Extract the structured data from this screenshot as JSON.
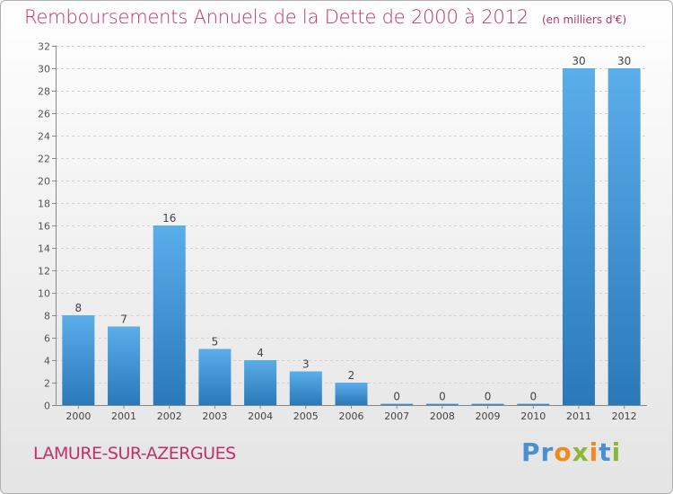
{
  "title": "Remboursements Annuels de la Dette de 2000 à 2012",
  "subtitle": "(en milliers d'€)",
  "footer": {
    "town": "LAMURE-SUR-AZERGUES",
    "logo_text": "Proxiti"
  },
  "colors": {
    "title": "#c2306a",
    "bar_light": "#5aaeea",
    "bar_dark": "#2a78b8"
  },
  "chart_data": {
    "type": "bar",
    "title": "Remboursements Annuels de la Dette de 2000 à 2012",
    "subtitle": "(en milliers d'€)",
    "categories": [
      "2000",
      "2001",
      "2002",
      "2003",
      "2004",
      "2005",
      "2006",
      "2007",
      "2008",
      "2009",
      "2010",
      "2011",
      "2012"
    ],
    "values": [
      8,
      7,
      16,
      5,
      4,
      3,
      2,
      0,
      0,
      0,
      0,
      30,
      30
    ],
    "xlabel": "",
    "ylabel": "",
    "ylim": [
      0,
      32
    ],
    "yticks": [
      0,
      2,
      4,
      6,
      8,
      10,
      12,
      14,
      16,
      18,
      20,
      22,
      24,
      26,
      28,
      30,
      32
    ],
    "grid": true,
    "legend": "none"
  }
}
